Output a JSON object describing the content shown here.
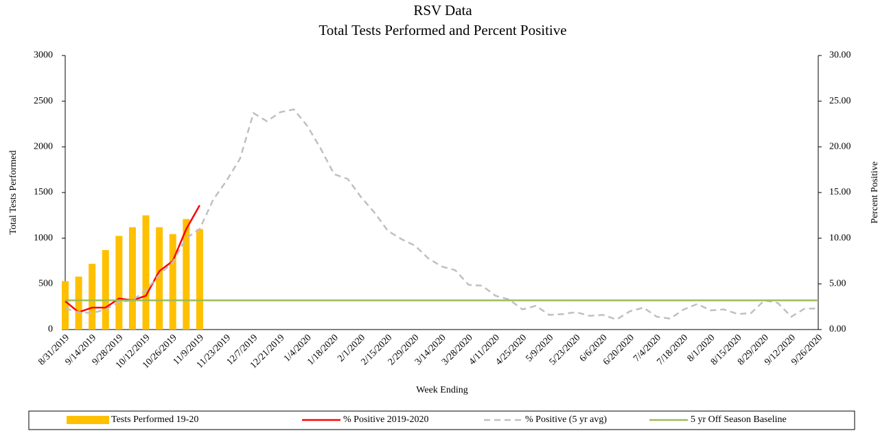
{
  "chart_data": {
    "type": "bar-line",
    "title": "RSV Data",
    "subtitle": "Total Tests Performed and Percent Positive",
    "x_label": "Week Ending",
    "y_label": "Total Tests Performed",
    "y2_label": "Percent Positive",
    "categories": [
      "8/31/2019",
      null,
      "9/14/2019",
      null,
      "9/28/2019",
      null,
      "10/12/2019",
      null,
      "10/26/2019",
      null,
      "11/9/2019",
      null,
      "11/23/2019",
      null,
      "12/7/2019",
      null,
      "12/21/2019",
      null,
      "1/4/2020",
      null,
      "1/18/2020",
      null,
      "2/1/2020",
      null,
      "2/15/2020",
      null,
      "2/29/2020",
      null,
      "3/14/2020",
      null,
      "3/28/2020",
      null,
      "4/11/2020",
      null,
      "4/25/2020",
      null,
      "5/9/2020",
      null,
      "5/23/2020",
      null,
      "6/6/2020",
      null,
      "6/20/2020",
      null,
      "7/4/2020",
      null,
      "7/18/2020",
      null,
      "8/1/2020",
      null,
      "8/15/2020",
      null,
      "8/29/2020",
      null,
      "9/12/2020",
      null,
      "9/26/2020"
    ],
    "ylim": [
      0,
      3000
    ],
    "yticks": [
      0,
      500,
      1000,
      1500,
      2000,
      2500,
      3000
    ],
    "y2lim": [
      0,
      30
    ],
    "y2ticks": [
      {
        "value": 0,
        "label": "0.00"
      },
      {
        "value": 5,
        "label": "5.00"
      },
      {
        "value": 10,
        "label": "10.00"
      },
      {
        "value": 15,
        "label": "15.00"
      },
      {
        "value": 20,
        "label": "20.00"
      },
      {
        "value": 25,
        "label": "25.00"
      },
      {
        "value": 30,
        "label": "30.00"
      }
    ],
    "series": [
      {
        "name": "Tests Performed 19-20",
        "type": "bar",
        "color": "#ffc000",
        "values": [
          530,
          580,
          720,
          870,
          1025,
          1120,
          1250,
          1120,
          1045,
          1210,
          1100,
          null,
          null,
          null,
          null,
          null,
          null,
          null,
          null,
          null,
          null,
          null,
          null,
          null,
          null,
          null,
          null,
          null,
          null,
          null,
          null,
          null,
          null,
          null,
          null,
          null,
          null,
          null,
          null,
          null,
          null,
          null,
          null,
          null,
          null,
          null,
          null,
          null,
          null,
          null,
          null,
          null,
          null,
          null,
          null,
          null,
          null
        ]
      },
      {
        "name": "% Positive 2019-2020",
        "type": "line",
        "axis": "y2",
        "color": "#ff0000",
        "values": [
          3.1,
          1.9,
          2.4,
          2.4,
          3.4,
          3.2,
          3.7,
          6.4,
          7.5,
          11.0,
          13.6,
          null,
          null,
          null,
          null,
          null,
          null,
          null,
          null,
          null,
          null,
          null,
          null,
          null,
          null,
          null,
          null,
          null,
          null,
          null,
          null,
          null,
          null,
          null,
          null,
          null,
          null,
          null,
          null,
          null,
          null,
          null,
          null,
          null,
          null,
          null,
          null,
          null,
          null,
          null,
          null,
          null,
          null,
          null,
          null,
          null,
          null
        ]
      },
      {
        "name": "% Positive (5 yr avg)",
        "type": "line",
        "axis": "y2",
        "color": "#bfbfbf",
        "dashed": true,
        "values": [
          2.3,
          1.9,
          1.8,
          2.2,
          3.0,
          3.2,
          4.3,
          6.0,
          7.4,
          10.0,
          11.0,
          14.2,
          16.3,
          18.7,
          23.7,
          22.8,
          23.8,
          24.1,
          22.3,
          19.8,
          17.0,
          16.5,
          14.5,
          12.8,
          10.8,
          9.9,
          9.2,
          7.8,
          6.9,
          6.5,
          4.9,
          4.8,
          3.7,
          3.3,
          2.2,
          2.6,
          1.6,
          1.7,
          1.9,
          1.5,
          1.6,
          1.1,
          2.0,
          2.4,
          1.4,
          1.2,
          2.2,
          2.8,
          2.1,
          2.2,
          1.7,
          1.8,
          3.2,
          2.9,
          1.4,
          2.3,
          2.3
        ]
      },
      {
        "name": "5 yr Off Season Baseline",
        "type": "line",
        "axis": "y2",
        "color": "#9bbb59",
        "values": [
          3.2,
          3.2,
          3.2,
          3.2,
          3.2,
          3.2,
          3.2,
          3.2,
          3.2,
          3.2,
          3.2,
          3.2,
          3.2,
          3.2,
          3.2,
          3.2,
          3.2,
          3.2,
          3.2,
          3.2,
          3.2,
          3.2,
          3.2,
          3.2,
          3.2,
          3.2,
          3.2,
          3.2,
          3.2,
          3.2,
          3.2,
          3.2,
          3.2,
          3.2,
          3.2,
          3.2,
          3.2,
          3.2,
          3.2,
          3.2,
          3.2,
          3.2,
          3.2,
          3.2,
          3.2,
          3.2,
          3.2,
          3.2,
          3.2,
          3.2,
          3.2,
          3.2,
          3.2,
          3.2,
          3.2,
          3.2,
          3.2
        ]
      }
    ],
    "legend": "bottom"
  }
}
